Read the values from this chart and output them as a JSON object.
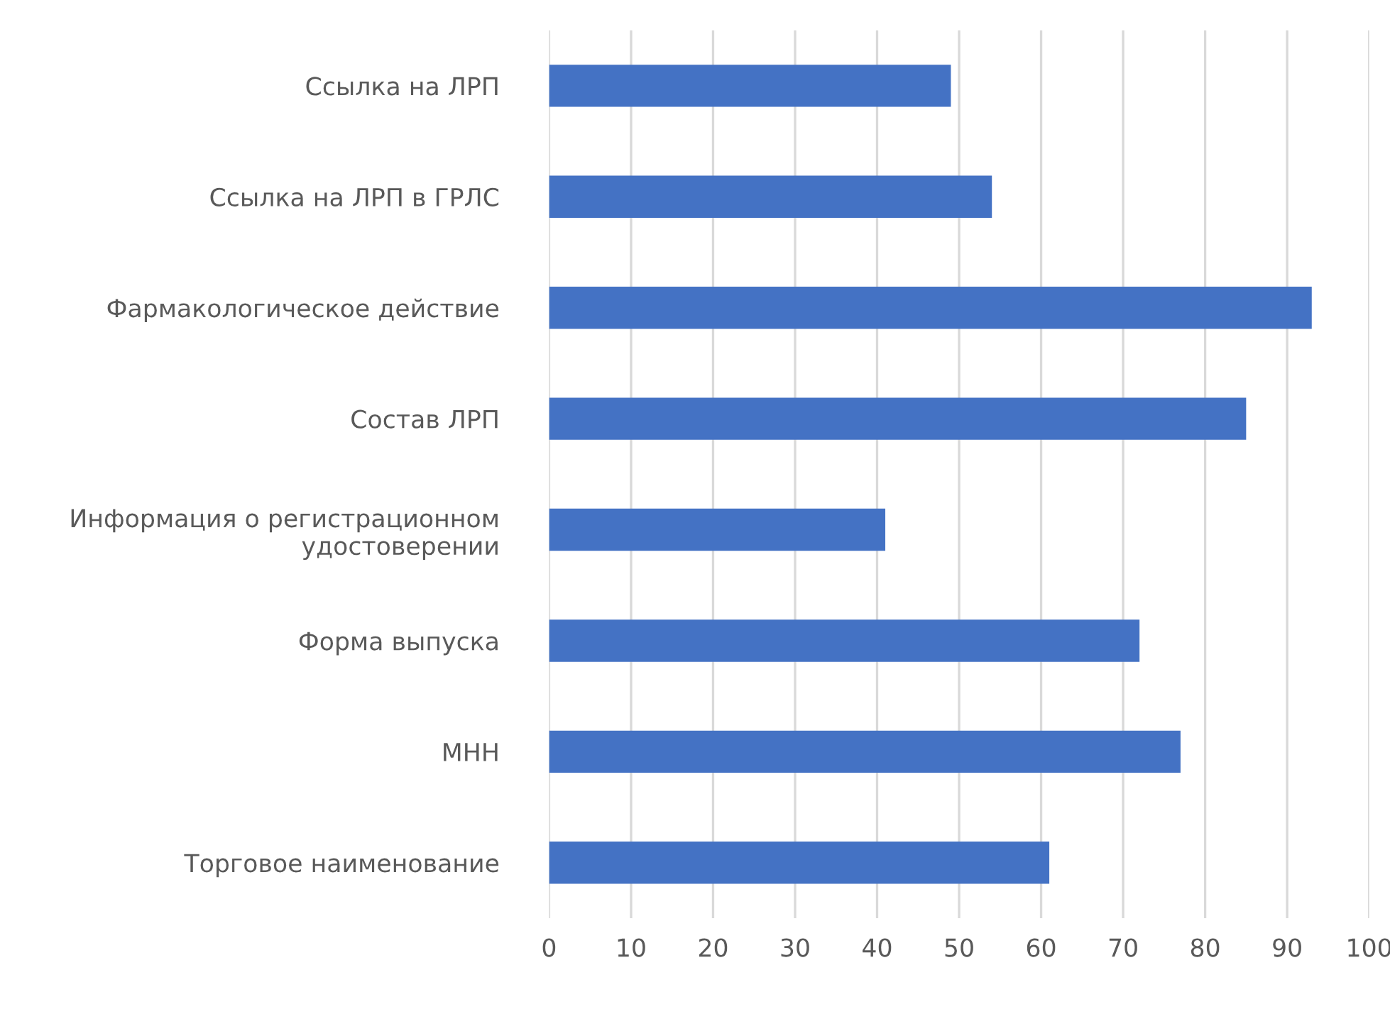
{
  "chart_data": {
    "type": "bar",
    "orientation": "horizontal",
    "categories": [
      "Ссылка на ЛРП",
      "Ссылка на ЛРП в ГРЛС",
      "Фармакологическое действие",
      "Состав ЛРП",
      "Информация о регистрационном\nудостоверении",
      "Форма выпуска",
      "МНН",
      "Торговое наименование"
    ],
    "values": [
      49,
      54,
      93,
      85,
      41,
      72,
      77,
      61
    ],
    "color": "#4472c4",
    "xlim": [
      0,
      100
    ],
    "xticks": [
      0,
      10,
      20,
      30,
      40,
      50,
      60,
      70,
      80,
      90,
      100
    ],
    "grid": "x",
    "legend": false
  }
}
